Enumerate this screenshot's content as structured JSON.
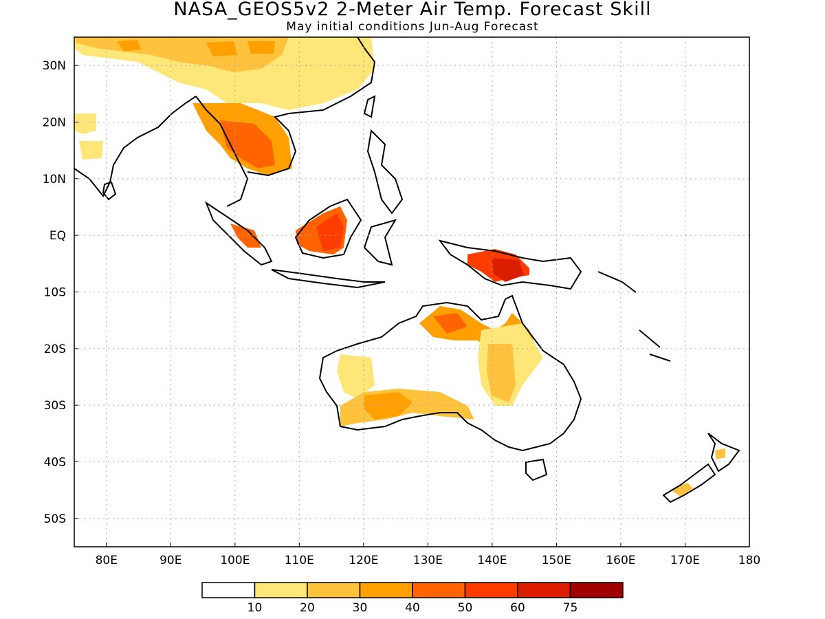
{
  "title": "NASA_GEOS5v2 2-Meter Air Temp. Forecast Skill",
  "subtitle": "May initial conditions  Jun-Aug Forecast",
  "map": {
    "lon_range": [
      75,
      180
    ],
    "lat_range": [
      -55,
      35
    ],
    "lon_ticks": [
      "80E",
      "90E",
      "100E",
      "110E",
      "120E",
      "130E",
      "140E",
      "150E",
      "160E",
      "170E",
      "180"
    ],
    "lon_tick_values": [
      80,
      90,
      100,
      110,
      120,
      130,
      140,
      150,
      160,
      170,
      180
    ],
    "lat_ticks": [
      "30N",
      "20N",
      "10N",
      "EQ",
      "10S",
      "20S",
      "30S",
      "40S",
      "50S"
    ],
    "lat_tick_values": [
      30,
      20,
      10,
      0,
      -10,
      -20,
      -30,
      -40,
      -50
    ],
    "grid": "dotted"
  },
  "colorbar": {
    "colors": [
      "#ffffff",
      "#ffe678",
      "#ffc23c",
      "#ffa000",
      "#ff6400",
      "#ff3c00",
      "#dc1e00",
      "#a00000"
    ],
    "labels": [
      "10",
      "20",
      "30",
      "40",
      "50",
      "60",
      "75"
    ]
  },
  "regions": [
    {
      "name": "tibet",
      "color": "#ffe678"
    },
    {
      "name": "indochina",
      "color": "#ff6400"
    },
    {
      "name": "borneo",
      "color": "#ff3c00"
    },
    {
      "name": "new-guinea",
      "color": "#dc1e00"
    },
    {
      "name": "australia-north",
      "color": "#ffa000"
    },
    {
      "name": "australia-southwest",
      "color": "#ffa000"
    },
    {
      "name": "australia-east",
      "color": "#ffc23c"
    },
    {
      "name": "new-zealand",
      "color": "#ffc23c"
    }
  ]
}
